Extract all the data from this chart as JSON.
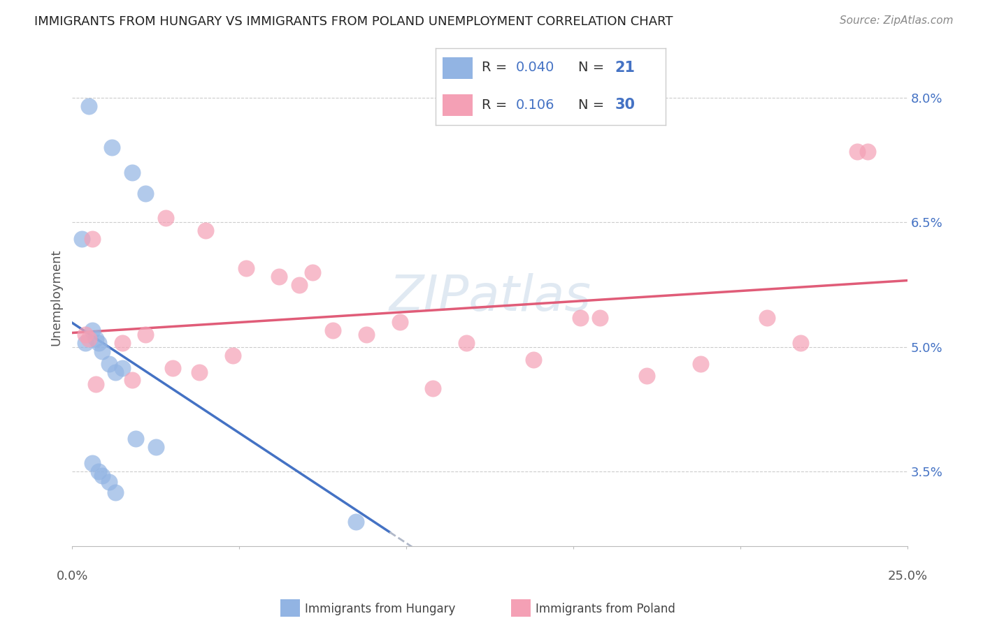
{
  "title": "IMMIGRANTS FROM HUNGARY VS IMMIGRANTS FROM POLAND UNEMPLOYMENT CORRELATION CHART",
  "source": "Source: ZipAtlas.com",
  "ylabel": "Unemployment",
  "yticks": [
    3.5,
    5.0,
    6.5,
    8.0
  ],
  "ytick_labels": [
    "3.5%",
    "5.0%",
    "6.5%",
    "8.0%"
  ],
  "xlim": [
    0.0,
    0.25
  ],
  "ylim": [
    2.6,
    8.6
  ],
  "legend_r_hungary": "0.040",
  "legend_n_hungary": "21",
  "legend_r_poland": "0.106",
  "legend_n_poland": "30",
  "color_hungary": "#92b4e3",
  "color_poland": "#f4a0b5",
  "trendline_hungary_color": "#4472c4",
  "trendline_poland_color": "#e05c78",
  "trendline_ext_color": "#b0b8c8",
  "hungary_x": [
    0.005,
    0.012,
    0.018,
    0.022,
    0.003,
    0.006,
    0.007,
    0.008,
    0.009,
    0.011,
    0.013,
    0.015,
    0.019,
    0.025,
    0.004,
    0.006,
    0.008,
    0.009,
    0.011,
    0.013,
    0.085
  ],
  "hungary_y": [
    7.9,
    7.4,
    7.1,
    6.85,
    6.3,
    5.2,
    5.1,
    5.05,
    4.95,
    4.8,
    4.7,
    4.75,
    3.9,
    3.8,
    5.05,
    3.6,
    3.5,
    3.45,
    3.38,
    3.25,
    2.9
  ],
  "poland_x": [
    0.004,
    0.005,
    0.006,
    0.015,
    0.022,
    0.03,
    0.038,
    0.04,
    0.052,
    0.062,
    0.068,
    0.072,
    0.078,
    0.088,
    0.098,
    0.118,
    0.138,
    0.152,
    0.158,
    0.172,
    0.188,
    0.208,
    0.218,
    0.238,
    0.007,
    0.018,
    0.028,
    0.048,
    0.108,
    0.235
  ],
  "poland_y": [
    5.15,
    5.1,
    6.3,
    5.05,
    5.15,
    4.75,
    4.7,
    6.4,
    5.95,
    5.85,
    5.75,
    5.9,
    5.2,
    5.15,
    5.3,
    5.05,
    4.85,
    5.35,
    5.35,
    4.65,
    4.8,
    5.35,
    5.05,
    7.35,
    4.55,
    4.6,
    6.55,
    4.9,
    4.5,
    7.35
  ],
  "hungary_trendline_x_end": 0.095,
  "watermark": "ZIPatlas"
}
